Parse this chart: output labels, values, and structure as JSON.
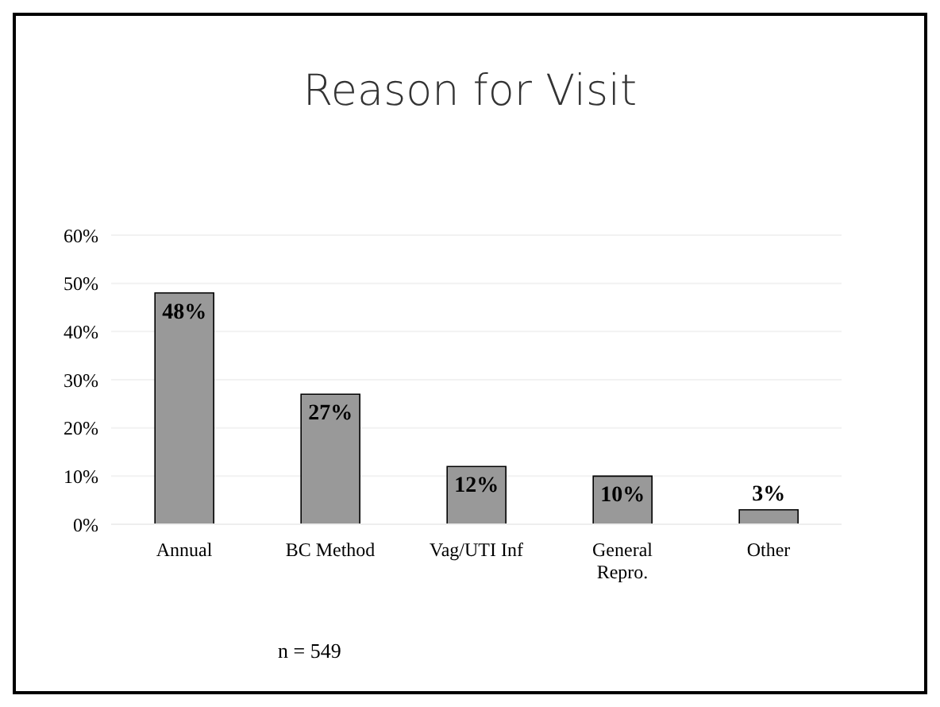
{
  "chart_data": {
    "type": "bar",
    "title": "Reason for Visit",
    "categories": [
      "Annual",
      "BC Method",
      "Vag/UTI Inf",
      "General Repro.",
      "Other"
    ],
    "values": [
      48,
      27,
      12,
      10,
      3
    ],
    "value_labels": [
      "48%",
      "27%",
      "12%",
      "10%",
      "3%"
    ],
    "color": "#999999",
    "ylim": [
      0,
      60
    ],
    "yticks": [
      {
        "value": 0,
        "label": "0%"
      },
      {
        "value": 10,
        "label": "10%"
      },
      {
        "value": 20,
        "label": "20%"
      },
      {
        "value": 30,
        "label": "30%"
      },
      {
        "value": 40,
        "label": "40%"
      },
      {
        "value": 50,
        "label": "50%"
      },
      {
        "value": 60,
        "label": "60%"
      }
    ],
    "grid": "y",
    "annotations": [
      "n = 549"
    ]
  }
}
